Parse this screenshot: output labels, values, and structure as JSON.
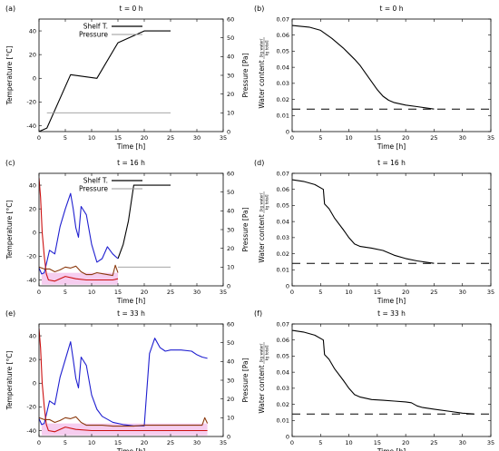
{
  "colors": {
    "shelf": "#000000",
    "pressure": "#999999",
    "product_blue": "#1f1fd0",
    "product_red": "#cc1010",
    "product_brown": "#8b3a0f",
    "band_pink": "#f2b8e8",
    "dashed": "#000000"
  },
  "chart_data": [
    {
      "id": "a",
      "panel_label": "(a)",
      "title": "t = 0 h",
      "type": "line",
      "xlabel": "Time [h]",
      "ylabel": "Temperature [°C]",
      "y2label": "Pressure [Pa]",
      "xlim": [
        0,
        35
      ],
      "ylim": [
        -45,
        50
      ],
      "y2lim": [
        0,
        60
      ],
      "xticks": [
        "0",
        "5",
        "10",
        "15",
        "20",
        "25",
        "30",
        "35"
      ],
      "yticks": [
        "-40",
        "-20",
        "0",
        "20",
        "40"
      ],
      "y2ticks": [
        "0",
        "10",
        "20",
        "30",
        "40",
        "50",
        "60"
      ],
      "legend": {
        "position": "top-left",
        "entries": [
          "Shelf T.",
          "Pressure"
        ]
      },
      "series": [
        {
          "name": "Shelf T.",
          "axis": "left",
          "color": "shelf",
          "x": [
            0,
            1.5,
            6,
            11,
            15,
            20,
            25
          ],
          "y": [
            -45,
            -42,
            3,
            0,
            30,
            40,
            40
          ]
        },
        {
          "name": "Pressure",
          "axis": "right",
          "color": "pressure",
          "x": [
            1.5,
            25
          ],
          "y": [
            10,
            10
          ]
        }
      ]
    },
    {
      "id": "b",
      "panel_label": "(b)",
      "title": "t = 0 h",
      "type": "line",
      "xlabel": "Time [h]",
      "ylabel": "Water content",
      "ylabel_fraction": [
        "[kg water/",
        "kg total]"
      ],
      "xlim": [
        0,
        35
      ],
      "ylim": [
        0,
        0.07
      ],
      "xticks": [
        "0",
        "5",
        "10",
        "15",
        "20",
        "25",
        "30",
        "35"
      ],
      "yticks": [
        "0",
        "0.01",
        "0.02",
        "0.03",
        "0.04",
        "0.05",
        "0.06",
        "0.07"
      ],
      "threshold": 0.014,
      "series": [
        {
          "axis": "left",
          "color": "shelf",
          "x": [
            0,
            3,
            5,
            7,
            9,
            11,
            12,
            13,
            14,
            15,
            16,
            17,
            18,
            20,
            22,
            25
          ],
          "y": [
            0.066,
            0.065,
            0.063,
            0.058,
            0.052,
            0.045,
            0.041,
            0.036,
            0.031,
            0.026,
            0.022,
            0.0195,
            0.018,
            0.0165,
            0.0155,
            0.014
          ]
        }
      ]
    },
    {
      "id": "c",
      "panel_label": "(c)",
      "title": "t = 16 h",
      "type": "line",
      "xlabel": "Time [h]",
      "ylabel": "Temperature [°C]",
      "y2label": "Pressure [Pa]",
      "xlim": [
        0,
        35
      ],
      "ylim": [
        -45,
        50
      ],
      "y2lim": [
        0,
        60
      ],
      "xticks": [
        "0",
        "5",
        "10",
        "15",
        "20",
        "25",
        "30",
        "35"
      ],
      "yticks": [
        "-40",
        "-20",
        "0",
        "20",
        "40"
      ],
      "y2ticks": [
        "0",
        "10",
        "20",
        "30",
        "40",
        "50",
        "60"
      ],
      "legend": {
        "position": "top-left",
        "entries": [
          "Shelf T.",
          "Pressure"
        ]
      },
      "series": [
        {
          "name": "Shelf T.",
          "axis": "left",
          "color": "shelf",
          "x": [
            15,
            16,
            17,
            18,
            20,
            25
          ],
          "y": [
            -22,
            -10,
            10,
            40,
            40,
            40
          ]
        },
        {
          "name": "Pressure",
          "axis": "right",
          "color": "pressure",
          "x": [
            15,
            25
          ],
          "y": [
            10,
            10
          ]
        },
        {
          "axis": "left",
          "color": "product_blue",
          "x": [
            0,
            0.5,
            1,
            2,
            3,
            4,
            5,
            6,
            6.5,
            7,
            7.5,
            8,
            9,
            10,
            11,
            12,
            13,
            14,
            15
          ],
          "y": [
            -30,
            -35,
            -34,
            -15,
            -18,
            5,
            20,
            33,
            20,
            4,
            -4,
            22,
            15,
            -10,
            -25,
            -22,
            -12,
            -18,
            -22
          ]
        },
        {
          "axis": "left",
          "color": "product_red",
          "x": [
            0,
            0.3,
            0.6,
            1,
            1.4,
            1.8,
            3,
            5,
            7,
            9,
            11,
            13,
            14,
            15
          ],
          "y": [
            46,
            30,
            0,
            -20,
            -35,
            -40,
            -41,
            -37,
            -39,
            -40,
            -40,
            -40,
            -40,
            -39
          ]
        },
        {
          "axis": "right",
          "color": "product_brown",
          "x": [
            0,
            1,
            2,
            3,
            4,
            5,
            6,
            7,
            8,
            9,
            10,
            11,
            12,
            13,
            14,
            14.5,
            15
          ],
          "y": [
            10,
            9,
            9,
            7.5,
            8.5,
            10,
            9.5,
            10.5,
            7.5,
            6,
            6,
            7,
            6.5,
            6,
            5.5,
            11,
            7
          ]
        }
      ],
      "band": {
        "x": [
          0.5,
          15
        ],
        "y": [
          -44,
          -34
        ],
        "axis": "left",
        "color": "band_pink"
      }
    },
    {
      "id": "d",
      "panel_label": "(d)",
      "title": "t = 16 h",
      "type": "line",
      "xlabel": "Time [h]",
      "ylabel": "Water content",
      "ylabel_fraction": [
        "[kg water/",
        "kg total]"
      ],
      "xlim": [
        0,
        35
      ],
      "ylim": [
        0,
        0.07
      ],
      "xticks": [
        "0",
        "5",
        "10",
        "15",
        "20",
        "25",
        "30",
        "35"
      ],
      "yticks": [
        "0",
        "0.01",
        "0.02",
        "0.03",
        "0.04",
        "0.05",
        "0.06",
        "0.07"
      ],
      "threshold": 0.014,
      "series": [
        {
          "axis": "left",
          "color": "shelf",
          "x": [
            0,
            2,
            4,
            5.5,
            5.7,
            6.5,
            7.5,
            9,
            10,
            11,
            12,
            14,
            16,
            18,
            20,
            22,
            25
          ],
          "y": [
            0.066,
            0.065,
            0.063,
            0.06,
            0.051,
            0.048,
            0.042,
            0.035,
            0.03,
            0.026,
            0.0245,
            0.0235,
            0.022,
            0.019,
            0.017,
            0.0155,
            0.014
          ]
        }
      ]
    },
    {
      "id": "e",
      "panel_label": "(e)",
      "title": "t = 33 h",
      "type": "line",
      "xlabel": "Time [h]",
      "ylabel": "Temperature [°C]",
      "y2label": "Pressure [Pa]",
      "xlim": [
        0,
        35
      ],
      "ylim": [
        -45,
        50
      ],
      "y2lim": [
        0,
        60
      ],
      "xticks": [
        "0",
        "5",
        "10",
        "15",
        "20",
        "25",
        "30",
        "35"
      ],
      "yticks": [
        "-40",
        "-20",
        "0",
        "20",
        "40"
      ],
      "y2ticks": [
        "0",
        "10",
        "20",
        "30",
        "40",
        "50",
        "60"
      ],
      "series": [
        {
          "axis": "left",
          "color": "product_blue",
          "x": [
            0,
            0.5,
            1,
            2,
            3,
            4,
            5,
            6,
            6.5,
            7,
            7.5,
            8,
            9,
            10,
            11,
            12,
            14,
            16,
            18,
            20,
            21,
            22,
            23,
            24,
            25,
            27,
            29,
            30,
            31,
            32
          ],
          "y": [
            -30,
            -35,
            -34,
            -15,
            -18,
            5,
            20,
            35,
            20,
            4,
            -4,
            22,
            15,
            -10,
            -22,
            -28,
            -33,
            -35,
            -36,
            -36,
            25,
            38,
            30,
            27,
            28,
            28,
            27,
            24,
            22,
            21
          ]
        },
        {
          "axis": "left",
          "color": "product_red",
          "x": [
            0,
            0.3,
            0.6,
            1,
            1.4,
            1.8,
            3,
            5,
            7,
            10,
            15,
            20,
            25,
            30,
            32
          ],
          "y": [
            46,
            30,
            0,
            -20,
            -35,
            -40,
            -41,
            -37,
            -39,
            -40,
            -40,
            -40,
            -40,
            -40,
            -40
          ]
        },
        {
          "axis": "right",
          "color": "product_brown",
          "x": [
            0,
            1,
            2,
            3,
            4,
            5,
            6,
            7,
            8,
            9,
            10,
            12,
            14,
            16,
            18,
            20,
            22,
            24,
            26,
            28,
            30,
            31,
            31.5,
            32
          ],
          "y": [
            10,
            9,
            9,
            7.5,
            8.5,
            10,
            9.5,
            10.5,
            7.5,
            6,
            6,
            6,
            5.5,
            5.5,
            5.5,
            6,
            6,
            6,
            6,
            6,
            6,
            6,
            10,
            7
          ]
        }
      ],
      "band": {
        "x": [
          0.5,
          32
        ],
        "y": [
          -44,
          -34
        ],
        "axis": "left",
        "color": "band_pink"
      }
    },
    {
      "id": "f",
      "panel_label": "(f)",
      "title": "t = 33 h",
      "type": "line",
      "xlabel": "Time [h]",
      "ylabel": "Water content",
      "ylabel_fraction": [
        "[kg water/",
        "kg total]"
      ],
      "xlim": [
        0,
        35
      ],
      "ylim": [
        0,
        0.07
      ],
      "xticks": [
        "0",
        "5",
        "10",
        "15",
        "20",
        "25",
        "30",
        "35"
      ],
      "yticks": [
        "0",
        "0.01",
        "0.02",
        "0.03",
        "0.04",
        "0.05",
        "0.06",
        "0.07"
      ],
      "threshold": 0.014,
      "series": [
        {
          "axis": "left",
          "color": "shelf",
          "x": [
            0,
            2,
            4,
            5.5,
            5.7,
            6.5,
            7.5,
            9,
            10,
            11,
            12,
            14,
            16,
            18,
            20,
            21,
            22,
            23,
            25,
            28,
            30,
            32
          ],
          "y": [
            0.066,
            0.065,
            0.063,
            0.06,
            0.051,
            0.048,
            0.042,
            0.035,
            0.03,
            0.026,
            0.0245,
            0.023,
            0.0225,
            0.022,
            0.0215,
            0.021,
            0.019,
            0.018,
            0.017,
            0.0155,
            0.0145,
            0.014
          ]
        }
      ]
    }
  ]
}
